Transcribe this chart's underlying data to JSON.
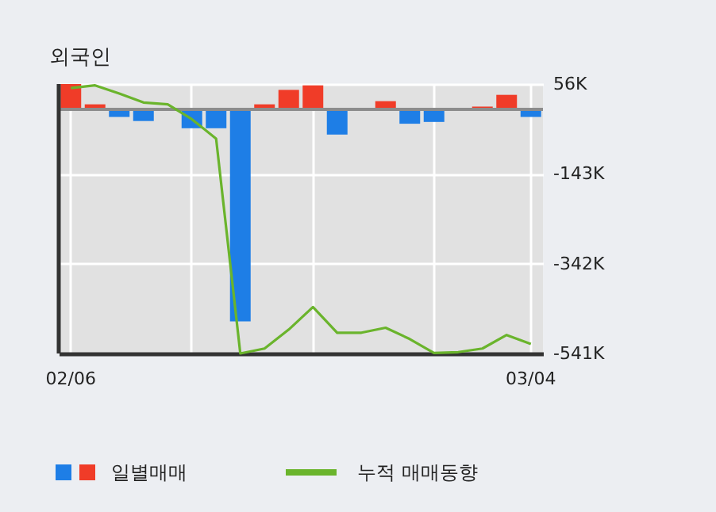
{
  "chart_data": {
    "type": "bar",
    "title": "외국인",
    "categories": [
      "02/06",
      null,
      null,
      null,
      null,
      null,
      null,
      null,
      null,
      null,
      null,
      null,
      null,
      null,
      null,
      null,
      null,
      null,
      null,
      "03/04"
    ],
    "series": [
      {
        "name": "일별매매",
        "color": "#1e7ee6",
        "colors": [
          "#f03c28",
          "#f03c28",
          "#1e7ee6",
          "#1e7ee6",
          null,
          "#1e7ee6",
          "#1e7ee6",
          "#1e7ee6",
          "#f03c28",
          "#f03c28",
          "#f03c28",
          "#1e7ee6",
          null,
          "#f03c28",
          "#1e7ee6",
          "#1e7ee6",
          null,
          "#f03c28",
          "#f03c28",
          "#1e7ee6"
        ],
        "values": [
          56,
          11,
          -17,
          -26,
          null,
          -42,
          -42,
          -470,
          11,
          43,
          53,
          -56,
          null,
          18,
          -32,
          -28,
          null,
          6,
          32,
          -17
        ]
      },
      {
        "name": "누적 매매동향",
        "type": "line",
        "color": "#6ab42c",
        "values": [
          47,
          53,
          35,
          15,
          11,
          -22,
          -65,
          -541,
          -530,
          -488,
          -438,
          -495,
          -495,
          -484,
          -509,
          -540,
          -538,
          -530,
          -500,
          -520
        ]
      }
    ],
    "ylim": [
      -541,
      56
    ],
    "yticks": [
      {
        "value": 56,
        "label": "56K"
      },
      {
        "value": -143,
        "label": "-143K"
      },
      {
        "value": -342,
        "label": "-342K"
      },
      {
        "value": -541,
        "label": "-541K"
      }
    ],
    "ref_lines": [
      {
        "axis": "y",
        "value": 0,
        "color": "#8c8c8c"
      }
    ],
    "grid": true,
    "legend": "bottom"
  }
}
